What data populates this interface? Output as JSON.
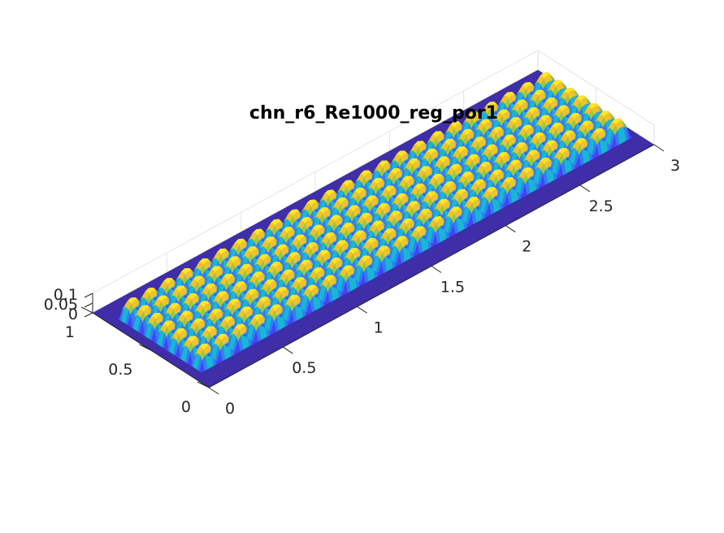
{
  "chart_data": {
    "type": "surface",
    "title": "chn_r6_Re1000_reg_por1",
    "xlabel": "",
    "ylabel": "",
    "zlabel": "",
    "xlim": [
      0,
      3
    ],
    "ylim": [
      0,
      1
    ],
    "zlim": [
      0,
      0.1
    ],
    "x_ticks": [
      "0",
      "0.5",
      "1",
      "1.5",
      "2",
      "2.5",
      "3"
    ],
    "y_ticks": [
      "0",
      "0.5",
      "1"
    ],
    "z_ticks": [
      "0",
      "0.05",
      "0.1"
    ],
    "grid": true,
    "colormap": "parula",
    "colors": [
      "#3e26a8",
      "#4743f8",
      "#2f80f6",
      "#1ab6d4",
      "#2bc59f",
      "#9bc93a",
      "#f2c12e",
      "#fde725",
      "#f9fb0e"
    ],
    "floor_color": "#3e2ea8",
    "pattern": {
      "description_free": true,
      "columns_along_x": 24,
      "rows_along_y": 7,
      "inner_y_range": [
        0.14,
        0.86
      ],
      "x_range": [
        0.06,
        2.96
      ],
      "peak_z": 0.1
    }
  }
}
